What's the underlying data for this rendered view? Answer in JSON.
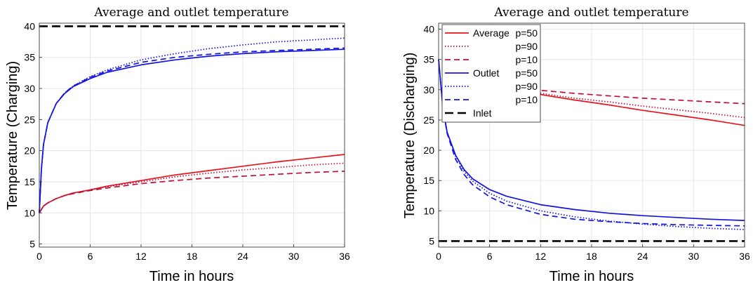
{
  "colors": {
    "red": "#e8141c",
    "darkred": "#c0103a",
    "blue": "#1414e0",
    "black": "#000000",
    "grid": "#e6e6e6"
  },
  "chart_data": [
    {
      "type": "line",
      "title": "Average and outlet temperature",
      "xlabel": "Time in hours",
      "ylabel": "Temperature (Charging)",
      "xlim": [
        0,
        36
      ],
      "ylim": [
        4.5,
        40.5
      ],
      "xticks": [
        0,
        6,
        12,
        18,
        24,
        30,
        36
      ],
      "yticks": [
        5,
        10,
        15,
        20,
        25,
        30,
        35,
        40
      ],
      "grid": true,
      "legend": "none",
      "series": [
        {
          "color": "red",
          "dash": "solid",
          "x": [
            0,
            0.5,
            1,
            2,
            3,
            4,
            6,
            8,
            12,
            16,
            20,
            24,
            28,
            32,
            36
          ],
          "y": [
            10,
            11.1,
            11.6,
            12.3,
            12.8,
            13.2,
            13.7,
            14.3,
            15.2,
            16.1,
            16.8,
            17.5,
            18.2,
            18.8,
            19.4
          ]
        },
        {
          "color": "darkred",
          "dash": "dotted",
          "x": [
            0,
            0.5,
            1,
            2,
            3,
            4,
            6,
            8,
            12,
            16,
            20,
            24,
            28,
            32,
            36
          ],
          "y": [
            10,
            11.1,
            11.6,
            12.3,
            12.8,
            13.2,
            13.7,
            14.2,
            15.0,
            15.8,
            16.4,
            16.9,
            17.3,
            17.7,
            18.0
          ]
        },
        {
          "color": "darkred",
          "dash": "dashed",
          "x": [
            0,
            0.5,
            1,
            2,
            3,
            4,
            6,
            8,
            12,
            16,
            20,
            24,
            28,
            32,
            36
          ],
          "y": [
            10,
            11.1,
            11.6,
            12.3,
            12.8,
            13.1,
            13.6,
            14.0,
            14.7,
            15.2,
            15.6,
            15.9,
            16.2,
            16.5,
            16.7
          ]
        },
        {
          "color": "blue",
          "dash": "solid",
          "x": [
            0,
            0.25,
            0.5,
            1,
            2,
            3,
            4,
            6,
            8,
            12,
            16,
            20,
            24,
            28,
            32,
            36
          ],
          "y": [
            10,
            17,
            21,
            24.5,
            27.6,
            29.2,
            30.3,
            31.6,
            32.6,
            33.8,
            34.6,
            35.2,
            35.6,
            35.9,
            36.1,
            36.3
          ]
        },
        {
          "color": "blue",
          "dash": "dotted",
          "x": [
            0,
            0.25,
            0.5,
            1,
            2,
            3,
            4,
            6,
            8,
            12,
            16,
            20,
            24,
            28,
            32,
            36
          ],
          "y": [
            10,
            17,
            21,
            24.5,
            27.6,
            29.3,
            30.4,
            31.9,
            33.0,
            34.6,
            35.6,
            36.4,
            37.0,
            37.5,
            37.8,
            38.1
          ]
        },
        {
          "color": "blue",
          "dash": "dashed",
          "x": [
            0,
            0.25,
            0.5,
            1,
            2,
            3,
            4,
            6,
            8,
            12,
            16,
            20,
            24,
            28,
            32,
            36
          ],
          "y": [
            10,
            17,
            21,
            24.5,
            27.6,
            29.3,
            30.4,
            31.8,
            32.8,
            34.2,
            35.0,
            35.5,
            35.9,
            36.1,
            36.3,
            36.5
          ]
        },
        {
          "color": "black",
          "dash": "longdash",
          "x": [
            0,
            36
          ],
          "y": [
            40,
            40
          ]
        }
      ]
    },
    {
      "type": "line",
      "title": "Average and outlet temperature",
      "xlabel": "Time in hours",
      "ylabel": "Temperature (Discharging)",
      "xlim": [
        0,
        36
      ],
      "ylim": [
        4,
        41
      ],
      "xticks": [
        0,
        6,
        12,
        18,
        24,
        30,
        36
      ],
      "yticks": [
        5,
        10,
        15,
        20,
        25,
        30,
        35,
        40
      ],
      "grid": true,
      "legend": "top-left",
      "legend_entries": [
        {
          "label": "Average p=50",
          "color": "red",
          "dash": "solid"
        },
        {
          "label": "p=90",
          "color": "darkred",
          "dash": "dotted"
        },
        {
          "label": "p=10",
          "color": "darkred",
          "dash": "dashed"
        },
        {
          "label": "Outlet p=50",
          "color": "blue",
          "dash": "solid"
        },
        {
          "label": "p=90",
          "color": "blue",
          "dash": "dotted"
        },
        {
          "label": "p=10",
          "color": "blue",
          "dash": "dashed"
        },
        {
          "label": "Inlet",
          "color": "black",
          "dash": "longdash"
        }
      ],
      "series": [
        {
          "color": "red",
          "dash": "solid",
          "x": [
            10,
            12,
            16,
            20,
            24,
            28,
            32,
            36
          ],
          "y": [
            29.8,
            29.2,
            28.3,
            27.5,
            26.6,
            25.8,
            25.0,
            24.1
          ]
        },
        {
          "color": "darkred",
          "dash": "dotted",
          "x": [
            10,
            12,
            16,
            20,
            24,
            28,
            32,
            36
          ],
          "y": [
            29.8,
            29.4,
            28.6,
            28.0,
            27.3,
            26.7,
            26.1,
            25.4
          ]
        },
        {
          "color": "darkred",
          "dash": "dashed",
          "x": [
            10,
            12,
            16,
            20,
            24,
            28,
            32,
            36
          ],
          "y": [
            30.2,
            29.9,
            29.4,
            29.0,
            28.6,
            28.3,
            28.0,
            27.7
          ]
        },
        {
          "color": "blue",
          "dash": "solid",
          "x": [
            0,
            0.5,
            1,
            2,
            3,
            4,
            6,
            8,
            12,
            16,
            20,
            24,
            28,
            32,
            36
          ],
          "y": [
            35,
            27,
            23,
            19.2,
            16.8,
            15.3,
            13.5,
            12.4,
            11.0,
            10.2,
            9.6,
            9.2,
            8.9,
            8.6,
            8.4
          ]
        },
        {
          "color": "blue",
          "dash": "dotted",
          "x": [
            0,
            0.5,
            1,
            2,
            3,
            4,
            6,
            8,
            12,
            16,
            20,
            24,
            28,
            32,
            36
          ],
          "y": [
            35,
            27,
            23,
            19.0,
            16.5,
            14.9,
            12.9,
            11.6,
            10.0,
            9.0,
            8.3,
            7.8,
            7.4,
            7.1,
            6.9
          ]
        },
        {
          "color": "blue",
          "dash": "dashed",
          "x": [
            0,
            0.5,
            1,
            2,
            3,
            4,
            6,
            8,
            12,
            16,
            20,
            24,
            28,
            32,
            36
          ],
          "y": [
            35,
            27,
            22.8,
            18.5,
            16.0,
            14.3,
            12.3,
            11.0,
            9.4,
            8.6,
            8.2,
            7.9,
            7.7,
            7.6,
            7.5
          ]
        },
        {
          "color": "black",
          "dash": "longdash",
          "x": [
            0,
            36
          ],
          "y": [
            5,
            5
          ]
        }
      ]
    }
  ]
}
